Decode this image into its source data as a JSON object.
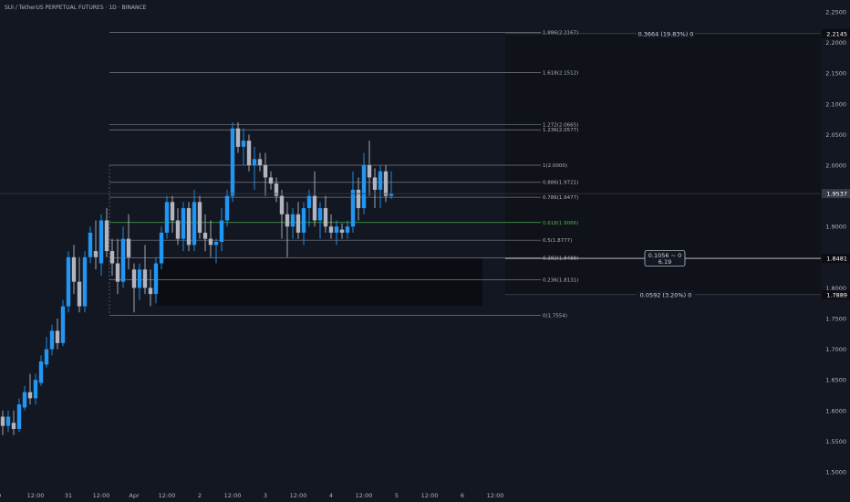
{
  "header": {
    "title": "SUI / TetherUS PERPETUAL FUTURES · 1D · BINANCE"
  },
  "colors": {
    "background": "#131722",
    "up": "#2196f3",
    "down": "#b2b5be",
    "fib": "#787b86",
    "fib_highlight": "#4caf50",
    "text": "#b2b5be",
    "box": "#0b0d12"
  },
  "chart_data": {
    "type": "candlestick",
    "y_axis": {
      "range": [
        1.48,
        2.26
      ],
      "ticks": [
        1.5,
        1.55,
        1.6,
        1.65,
        1.7,
        1.75,
        1.8,
        1.85,
        1.9,
        1.95,
        2.0,
        2.05,
        2.1,
        2.15,
        2.2,
        2.25
      ],
      "tick_labels": [
        "1.5000",
        "1.5500",
        "1.6000",
        "1.6500",
        "1.7000",
        "1.7500",
        "1.8000",
        "1.8500",
        "1.9000",
        "1.9500",
        "2.0000",
        "2.0500",
        "2.1000",
        "2.1500",
        "2.2000",
        "2.2500"
      ]
    },
    "x_axis": {
      "ticks": [
        {
          "t": -1,
          "label": "30"
        },
        {
          "t": 6,
          "label": "12:00"
        },
        {
          "t": 12,
          "label": "31"
        },
        {
          "t": 18,
          "label": "12:00"
        },
        {
          "t": 24,
          "label": "Apr"
        },
        {
          "t": 30,
          "label": "12:00"
        },
        {
          "t": 36,
          "label": "2"
        },
        {
          "t": 42,
          "label": "12:00"
        },
        {
          "t": 48,
          "label": "3"
        },
        {
          "t": 54,
          "label": "12:00"
        },
        {
          "t": 60,
          "label": "4"
        },
        {
          "t": 66,
          "label": "12:00"
        },
        {
          "t": 72,
          "label": "5"
        },
        {
          "t": 78,
          "label": "12:00"
        },
        {
          "t": 84,
          "label": "6"
        },
        {
          "t": 90,
          "label": "12:00"
        }
      ]
    },
    "candles": [
      {
        "o": 1.59,
        "h": 1.6,
        "l": 1.56,
        "c": 1.575
      },
      {
        "o": 1.575,
        "h": 1.6,
        "l": 1.565,
        "c": 1.59
      },
      {
        "o": 1.58,
        "h": 1.6,
        "l": 1.56,
        "c": 1.57
      },
      {
        "o": 1.57,
        "h": 1.62,
        "l": 1.565,
        "c": 1.61
      },
      {
        "o": 1.605,
        "h": 1.64,
        "l": 1.6,
        "c": 1.63
      },
      {
        "o": 1.63,
        "h": 1.66,
        "l": 1.61,
        "c": 1.62
      },
      {
        "o": 1.62,
        "h": 1.66,
        "l": 1.61,
        "c": 1.65
      },
      {
        "o": 1.645,
        "h": 1.69,
        "l": 1.64,
        "c": 1.68
      },
      {
        "o": 1.675,
        "h": 1.72,
        "l": 1.67,
        "c": 1.7
      },
      {
        "o": 1.7,
        "h": 1.74,
        "l": 1.69,
        "c": 1.73
      },
      {
        "o": 1.73,
        "h": 1.75,
        "l": 1.7,
        "c": 1.71
      },
      {
        "o": 1.71,
        "h": 1.78,
        "l": 1.705,
        "c": 1.77
      },
      {
        "o": 1.77,
        "h": 1.86,
        "l": 1.76,
        "c": 1.85
      },
      {
        "o": 1.85,
        "h": 1.87,
        "l": 1.79,
        "c": 1.81
      },
      {
        "o": 1.81,
        "h": 1.85,
        "l": 1.76,
        "c": 1.77
      },
      {
        "o": 1.77,
        "h": 1.86,
        "l": 1.76,
        "c": 1.85
      },
      {
        "o": 1.85,
        "h": 1.9,
        "l": 1.84,
        "c": 1.89
      },
      {
        "o": 1.86,
        "h": 1.91,
        "l": 1.83,
        "c": 1.85
      },
      {
        "o": 1.84,
        "h": 1.92,
        "l": 1.82,
        "c": 1.91
      },
      {
        "o": 1.91,
        "h": 1.93,
        "l": 1.85,
        "c": 1.86
      },
      {
        "o": 1.86,
        "h": 1.88,
        "l": 1.82,
        "c": 1.84
      },
      {
        "o": 1.84,
        "h": 1.88,
        "l": 1.79,
        "c": 1.81
      },
      {
        "o": 1.81,
        "h": 1.9,
        "l": 1.8,
        "c": 1.88
      },
      {
        "o": 1.88,
        "h": 1.92,
        "l": 1.83,
        "c": 1.85
      },
      {
        "o": 1.83,
        "h": 1.84,
        "l": 1.76,
        "c": 1.8
      },
      {
        "o": 1.8,
        "h": 1.84,
        "l": 1.78,
        "c": 1.83
      },
      {
        "o": 1.83,
        "h": 1.87,
        "l": 1.79,
        "c": 1.8
      },
      {
        "o": 1.8,
        "h": 1.83,
        "l": 1.77,
        "c": 1.79
      },
      {
        "o": 1.79,
        "h": 1.85,
        "l": 1.775,
        "c": 1.84
      },
      {
        "o": 1.84,
        "h": 1.9,
        "l": 1.83,
        "c": 1.89
      },
      {
        "o": 1.89,
        "h": 1.95,
        "l": 1.88,
        "c": 1.94
      },
      {
        "o": 1.94,
        "h": 1.95,
        "l": 1.89,
        "c": 1.91
      },
      {
        "o": 1.91,
        "h": 1.93,
        "l": 1.87,
        "c": 1.88
      },
      {
        "o": 1.88,
        "h": 1.94,
        "l": 1.86,
        "c": 1.93
      },
      {
        "o": 1.93,
        "h": 1.94,
        "l": 1.86,
        "c": 1.87
      },
      {
        "o": 1.87,
        "h": 1.96,
        "l": 1.86,
        "c": 1.94
      },
      {
        "o": 1.94,
        "h": 1.95,
        "l": 1.88,
        "c": 1.89
      },
      {
        "o": 1.89,
        "h": 1.92,
        "l": 1.86,
        "c": 1.88
      },
      {
        "o": 1.88,
        "h": 1.91,
        "l": 1.85,
        "c": 1.87
      },
      {
        "o": 1.87,
        "h": 1.88,
        "l": 1.84,
        "c": 1.875
      },
      {
        "o": 1.875,
        "h": 1.93,
        "l": 1.86,
        "c": 1.91
      },
      {
        "o": 1.91,
        "h": 1.96,
        "l": 1.9,
        "c": 1.95
      },
      {
        "o": 1.95,
        "h": 2.07,
        "l": 1.94,
        "c": 2.06
      },
      {
        "o": 2.06,
        "h": 2.07,
        "l": 2.02,
        "c": 2.03
      },
      {
        "o": 2.03,
        "h": 2.06,
        "l": 2.0,
        "c": 2.04
      },
      {
        "o": 2.04,
        "h": 2.05,
        "l": 1.99,
        "c": 2.0
      },
      {
        "o": 2.0,
        "h": 2.03,
        "l": 1.96,
        "c": 2.01
      },
      {
        "o": 2.01,
        "h": 2.02,
        "l": 1.99,
        "c": 2.0
      },
      {
        "o": 2.0,
        "h": 2.02,
        "l": 1.95,
        "c": 1.98
      },
      {
        "o": 1.98,
        "h": 1.99,
        "l": 1.96,
        "c": 1.97
      },
      {
        "o": 1.97,
        "h": 1.98,
        "l": 1.94,
        "c": 1.95
      },
      {
        "o": 1.95,
        "h": 1.96,
        "l": 1.88,
        "c": 1.92
      },
      {
        "o": 1.92,
        "h": 1.94,
        "l": 1.85,
        "c": 1.9
      },
      {
        "o": 1.9,
        "h": 1.93,
        "l": 1.88,
        "c": 1.92
      },
      {
        "o": 1.92,
        "h": 1.94,
        "l": 1.88,
        "c": 1.89
      },
      {
        "o": 1.89,
        "h": 1.94,
        "l": 1.87,
        "c": 1.93
      },
      {
        "o": 1.93,
        "h": 1.96,
        "l": 1.9,
        "c": 1.95
      },
      {
        "o": 1.95,
        "h": 1.99,
        "l": 1.9,
        "c": 1.91
      },
      {
        "o": 1.91,
        "h": 1.94,
        "l": 1.88,
        "c": 1.93
      },
      {
        "o": 1.93,
        "h": 1.95,
        "l": 1.89,
        "c": 1.9
      },
      {
        "o": 1.9,
        "h": 1.92,
        "l": 1.88,
        "c": 1.89
      },
      {
        "o": 1.89,
        "h": 1.91,
        "l": 1.87,
        "c": 1.9
      },
      {
        "o": 1.895,
        "h": 1.905,
        "l": 1.88,
        "c": 1.89
      },
      {
        "o": 1.89,
        "h": 1.91,
        "l": 1.88,
        "c": 1.9
      },
      {
        "o": 1.9,
        "h": 1.99,
        "l": 1.89,
        "c": 1.96
      },
      {
        "o": 1.96,
        "h": 1.98,
        "l": 1.91,
        "c": 1.93
      },
      {
        "o": 1.93,
        "h": 2.02,
        "l": 1.92,
        "c": 2.0
      },
      {
        "o": 2.0,
        "h": 2.04,
        "l": 1.95,
        "c": 1.98
      },
      {
        "o": 1.98,
        "h": 1.995,
        "l": 1.93,
        "c": 1.96
      },
      {
        "o": 1.96,
        "h": 2.0,
        "l": 1.93,
        "c": 1.99
      },
      {
        "o": 1.99,
        "h": 2.0,
        "l": 1.94,
        "c": 1.95
      },
      {
        "o": 1.95,
        "h": 1.99,
        "l": 1.945,
        "c": 1.954
      }
    ],
    "fib_levels": [
      {
        "ratio": "0",
        "price": 1.7554,
        "label": "0(1.7554)"
      },
      {
        "ratio": "0.236",
        "price": 1.8131,
        "label": "0.236(1.8131)"
      },
      {
        "ratio": "0.382",
        "price": 1.8488,
        "label": "0.382(1.8488)"
      },
      {
        "ratio": "0.5",
        "price": 1.8777,
        "label": "0.5(1.8777)"
      },
      {
        "ratio": "0.618",
        "price": 1.9066,
        "label": "0.618(1.9066)",
        "highlight": true
      },
      {
        "ratio": "0.786",
        "price": 1.9477,
        "label": "0.786(1.9477)"
      },
      {
        "ratio": "0.886",
        "price": 1.9721,
        "label": "0.886(1.9721)"
      },
      {
        "ratio": "1",
        "price": 2.0,
        "label": "1(2.0000)"
      },
      {
        "ratio": "1.236",
        "price": 2.0577,
        "label": "1.236(2.0577)"
      },
      {
        "ratio": "1.272",
        "price": 2.0665,
        "label": "1.272(2.0665)"
      },
      {
        "ratio": "1.618",
        "price": 2.1512,
        "label": "1.618(2.1512)"
      },
      {
        "ratio": "1.886",
        "price": 2.2167,
        "label": "1.886(2.2167)"
      }
    ],
    "boxes": [
      {
        "y1": 1.8481,
        "y2": 1.7889,
        "label": "0.1056 ~ 0",
        "sublabel": "6.19"
      }
    ],
    "projection": {
      "upper": {
        "price": 2.2145,
        "label": "0.3664 (19.83%) 0"
      },
      "lower": {
        "price": 1.7889,
        "label": "0.0592 (3.20%) 0"
      }
    },
    "price_labels": [
      {
        "price": 2.2145,
        "label": "2.2145",
        "style": "dark"
      },
      {
        "price": 1.9537,
        "label": "1.9537",
        "style": "current"
      },
      {
        "price": 1.8481,
        "label": "1.8481",
        "style": "dark"
      },
      {
        "price": 1.7889,
        "label": "1.7889",
        "style": "dark"
      }
    ]
  }
}
